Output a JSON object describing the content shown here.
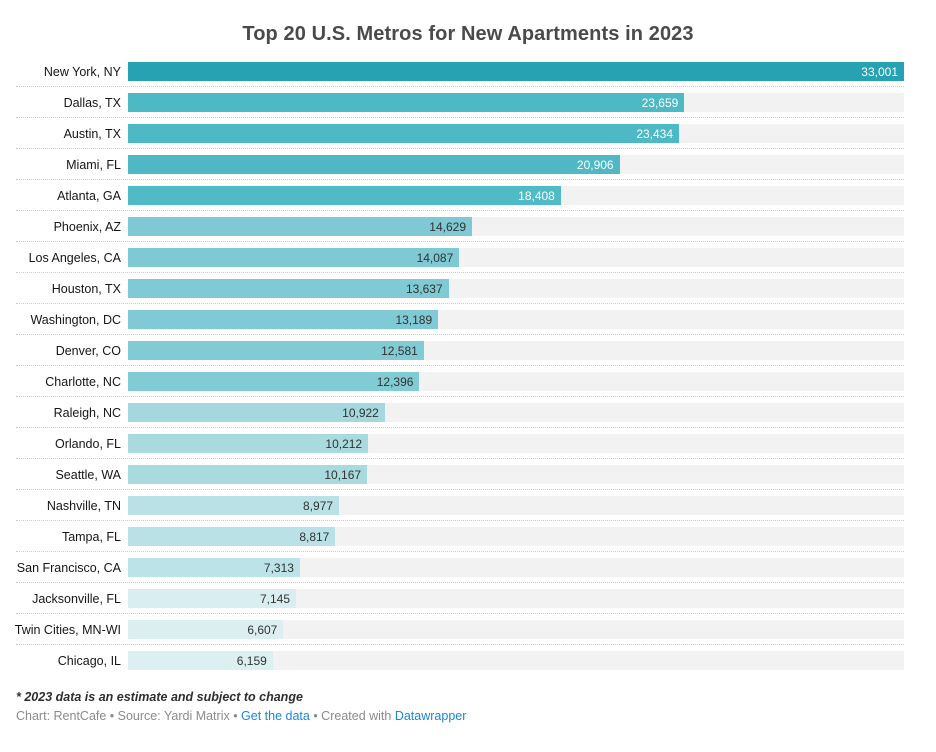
{
  "title": "Top 20 U.S. Metros for New Apartments in 2023",
  "colors": {
    "track_background": "#f2f2f2",
    "separator": "#c9c9c9",
    "title_text": "#4a4a4a",
    "link_blue": "#1d86d6",
    "byline_gray": "#8b8b8b"
  },
  "chart_data": {
    "type": "bar",
    "orientation": "horizontal",
    "title": "Top 20 U.S. Metros for New Apartments in 2023",
    "xlabel": "",
    "ylabel": "",
    "xlim": [
      0,
      33001
    ],
    "grid": false,
    "legend": "none",
    "value_format": "comma-thousands",
    "categories": [
      "New York, NY",
      "Dallas, TX",
      "Austin, TX",
      "Miami, FL",
      "Atlanta, GA",
      "Phoenix, AZ",
      "Los Angeles, CA",
      "Houston, TX",
      "Washington, DC",
      "Denver, CO",
      "Charlotte, NC",
      "Raleigh, NC",
      "Orlando, FL",
      "Seattle, WA",
      "Nashville, TN",
      "Tampa, FL",
      "San Francisco, CA",
      "Jacksonville, FL",
      "Twin Cities, MN-WI",
      "Chicago, IL"
    ],
    "values": [
      33001,
      23659,
      23434,
      20906,
      18408,
      14629,
      14087,
      13637,
      13189,
      12581,
      12396,
      10922,
      10212,
      10167,
      8977,
      8817,
      7313,
      7145,
      6607,
      6159
    ],
    "rows": [
      {
        "label": "New York, NY",
        "value": 33001,
        "display": "33,001",
        "bar_color": "#26a2b2",
        "value_color": "#ffffff"
      },
      {
        "label": "Dallas, TX",
        "value": 23659,
        "display": "23,659",
        "bar_color": "#4db9c5",
        "value_color": "#ffffff"
      },
      {
        "label": "Austin, TX",
        "value": 23434,
        "display": "23,434",
        "bar_color": "#4db9c5",
        "value_color": "#ffffff"
      },
      {
        "label": "Miami, FL",
        "value": 20906,
        "display": "20,906",
        "bar_color": "#4eb9c5",
        "value_color": "#ffffff"
      },
      {
        "label": "Atlanta, GA",
        "value": 18408,
        "display": "18,408",
        "bar_color": "#50bac6",
        "value_color": "#ffffff"
      },
      {
        "label": "Phoenix, AZ",
        "value": 14629,
        "display": "14,629",
        "bar_color": "#7ec9d3",
        "value_color": "#323232"
      },
      {
        "label": "Los Angeles, CA",
        "value": 14087,
        "display": "14,087",
        "bar_color": "#7ec9d3",
        "value_color": "#323232"
      },
      {
        "label": "Houston, TX",
        "value": 13637,
        "display": "13,637",
        "bar_color": "#7fcad4",
        "value_color": "#323232"
      },
      {
        "label": "Washington, DC",
        "value": 13189,
        "display": "13,189",
        "bar_color": "#7fcad4",
        "value_color": "#323232"
      },
      {
        "label": "Denver, CO",
        "value": 12581,
        "display": "12,581",
        "bar_color": "#81cbd5",
        "value_color": "#323232"
      },
      {
        "label": "Charlotte, NC",
        "value": 12396,
        "display": "12,396",
        "bar_color": "#81cbd5",
        "value_color": "#323232"
      },
      {
        "label": "Raleigh, NC",
        "value": 10922,
        "display": "10,922",
        "bar_color": "#a5d8de",
        "value_color": "#323232"
      },
      {
        "label": "Orlando, FL",
        "value": 10212,
        "display": "10,212",
        "bar_color": "#a8dade",
        "value_color": "#323232"
      },
      {
        "label": "Seattle, WA",
        "value": 10167,
        "display": "10,167",
        "bar_color": "#a8dade",
        "value_color": "#323232"
      },
      {
        "label": "Nashville, TN",
        "value": 8977,
        "display": "8,977",
        "bar_color": "#b9e1e6",
        "value_color": "#323232"
      },
      {
        "label": "Tampa, FL",
        "value": 8817,
        "display": "8,817",
        "bar_color": "#bae2e6",
        "value_color": "#323232"
      },
      {
        "label": "San Francisco, CA",
        "value": 7313,
        "display": "7,313",
        "bar_color": "#bce3e7",
        "value_color": "#323232"
      },
      {
        "label": "Jacksonville, FL",
        "value": 7145,
        "display": "7,145",
        "bar_color": "#d9eef1",
        "value_color": "#323232"
      },
      {
        "label": "Twin Cities, MN-WI",
        "value": 6607,
        "display": "6,607",
        "bar_color": "#dbeff1",
        "value_color": "#323232"
      },
      {
        "label": "Chicago, IL",
        "value": 6159,
        "display": "6,159",
        "bar_color": "#dcf0f2",
        "value_color": "#323232"
      }
    ]
  },
  "footer": {
    "note": "* 2023 data is an estimate and subject to change",
    "byline_prefix": "Chart: RentCafe • Source: Yardi Matrix • ",
    "get_data_label": "Get the data",
    "byline_middle": " • Created with ",
    "datawrapper_label": "Datawrapper"
  }
}
